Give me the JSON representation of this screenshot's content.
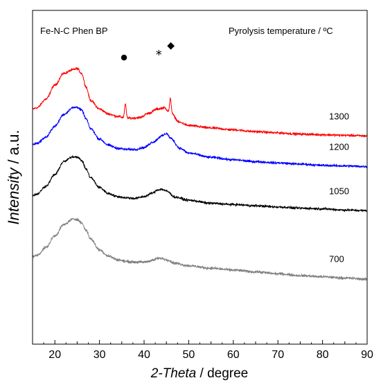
{
  "chart_data": {
    "type": "line",
    "xlabel": {
      "italic": "2-Theta",
      "rest": " / degree"
    },
    "ylabel": {
      "italic": "Intensity",
      "rest": " / a.u."
    },
    "xlim": [
      15,
      90
    ],
    "xticks": [
      20,
      30,
      40,
      50,
      60,
      70,
      80,
      90
    ],
    "y_tick_labels": false,
    "grid": false,
    "sample_label": "Fe-N-C Phen BP",
    "legend_title": "Pyrolysis temperature / ºC",
    "series": [
      {
        "name": "1300",
        "color": "#ff0000",
        "points": [
          [
            15,
            0.94
          ],
          [
            16,
            0.96
          ],
          [
            18,
            1.1
          ],
          [
            20,
            1.33
          ],
          [
            22,
            1.52
          ],
          [
            24,
            1.58
          ],
          [
            25,
            1.6
          ],
          [
            26,
            1.52
          ],
          [
            27,
            1.3
          ],
          [
            28,
            1.08
          ],
          [
            30,
            0.94
          ],
          [
            32,
            0.86
          ],
          [
            34,
            0.82
          ],
          [
            35.5,
            0.8
          ],
          [
            37,
            0.79
          ],
          [
            39,
            0.8
          ],
          [
            41,
            0.87
          ],
          [
            43,
            0.94
          ],
          [
            44.5,
            0.96
          ],
          [
            46,
            0.87
          ],
          [
            48,
            0.72
          ],
          [
            50,
            0.67
          ],
          [
            55,
            0.63
          ],
          [
            60,
            0.6
          ],
          [
            65,
            0.57
          ],
          [
            70,
            0.55
          ],
          [
            75,
            0.53
          ],
          [
            80,
            0.52
          ],
          [
            85,
            0.51
          ],
          [
            90,
            0.5
          ]
        ],
        "peaks": [
          [
            35.8,
            0.22
          ],
          [
            45.9,
            0.24
          ]
        ],
        "noise": 0.022
      },
      {
        "name": "1200",
        "color": "#0000ff",
        "points": [
          [
            15,
            0.36
          ],
          [
            16,
            0.38
          ],
          [
            18,
            0.48
          ],
          [
            20,
            0.66
          ],
          [
            22,
            0.85
          ],
          [
            24,
            0.96
          ],
          [
            25,
            0.97
          ],
          [
            26,
            0.92
          ],
          [
            27,
            0.78
          ],
          [
            28,
            0.62
          ],
          [
            30,
            0.45
          ],
          [
            32,
            0.35
          ],
          [
            34,
            0.3
          ],
          [
            36,
            0.28
          ],
          [
            38,
            0.28
          ],
          [
            40,
            0.31
          ],
          [
            42,
            0.4
          ],
          [
            44,
            0.5
          ],
          [
            45,
            0.54
          ],
          [
            46,
            0.46
          ],
          [
            48,
            0.3
          ],
          [
            50,
            0.22
          ],
          [
            55,
            0.15
          ],
          [
            60,
            0.11
          ],
          [
            65,
            0.08
          ],
          [
            70,
            0.06
          ],
          [
            75,
            0.04
          ],
          [
            80,
            0.02
          ],
          [
            85,
            0.01
          ],
          [
            90,
            0.0
          ]
        ],
        "peaks": [],
        "noise": 0.022
      },
      {
        "name": "1050",
        "color": "#000000",
        "points": [
          [
            15,
            -0.47
          ],
          [
            16,
            -0.45
          ],
          [
            18,
            -0.32
          ],
          [
            20,
            -0.13
          ],
          [
            22,
            0.08
          ],
          [
            24,
            0.16
          ],
          [
            25,
            0.16
          ],
          [
            26,
            0.1
          ],
          [
            27,
            -0.04
          ],
          [
            28,
            -0.18
          ],
          [
            30,
            -0.34
          ],
          [
            32,
            -0.44
          ],
          [
            34,
            -0.49
          ],
          [
            36,
            -0.51
          ],
          [
            38,
            -0.52
          ],
          [
            40,
            -0.49
          ],
          [
            42,
            -0.43
          ],
          [
            43,
            -0.38
          ],
          [
            44,
            -0.37
          ],
          [
            45,
            -0.4
          ],
          [
            47,
            -0.5
          ],
          [
            50,
            -0.55
          ],
          [
            55,
            -0.6
          ],
          [
            60,
            -0.62
          ],
          [
            65,
            -0.64
          ],
          [
            70,
            -0.66
          ],
          [
            75,
            -0.68
          ],
          [
            80,
            -0.69
          ],
          [
            85,
            -0.71
          ],
          [
            90,
            -0.72
          ]
        ],
        "peaks": [],
        "noise": 0.022
      },
      {
        "name": "700",
        "color": "#808080",
        "points": [
          [
            15,
            -1.47
          ],
          [
            16,
            -1.45
          ],
          [
            18,
            -1.32
          ],
          [
            20,
            -1.13
          ],
          [
            22,
            -0.95
          ],
          [
            24,
            -0.86
          ],
          [
            25,
            -0.86
          ],
          [
            26,
            -0.92
          ],
          [
            27,
            -1.04
          ],
          [
            28,
            -1.18
          ],
          [
            30,
            -1.36
          ],
          [
            32,
            -1.46
          ],
          [
            34,
            -1.52
          ],
          [
            36,
            -1.55
          ],
          [
            38,
            -1.56
          ],
          [
            40,
            -1.56
          ],
          [
            42,
            -1.53
          ],
          [
            43,
            -1.5
          ],
          [
            44,
            -1.5
          ],
          [
            45,
            -1.52
          ],
          [
            47,
            -1.58
          ],
          [
            50,
            -1.62
          ],
          [
            55,
            -1.66
          ],
          [
            60,
            -1.69
          ],
          [
            65,
            -1.72
          ],
          [
            70,
            -1.75
          ],
          [
            75,
            -1.78
          ],
          [
            80,
            -1.8
          ],
          [
            85,
            -1.82
          ],
          [
            90,
            -1.84
          ]
        ],
        "peaks": [],
        "noise": 0.024
      }
    ],
    "annotations": [
      {
        "name": "dot-marker",
        "symbol": "●",
        "x": 35.5,
        "y": 1.75
      },
      {
        "name": "asterisk-marker",
        "symbol": "*",
        "x": 43.3,
        "y": 1.76
      },
      {
        "name": "diamond-marker",
        "symbol": "◆",
        "x": 46.0,
        "y": 1.93
      }
    ]
  }
}
